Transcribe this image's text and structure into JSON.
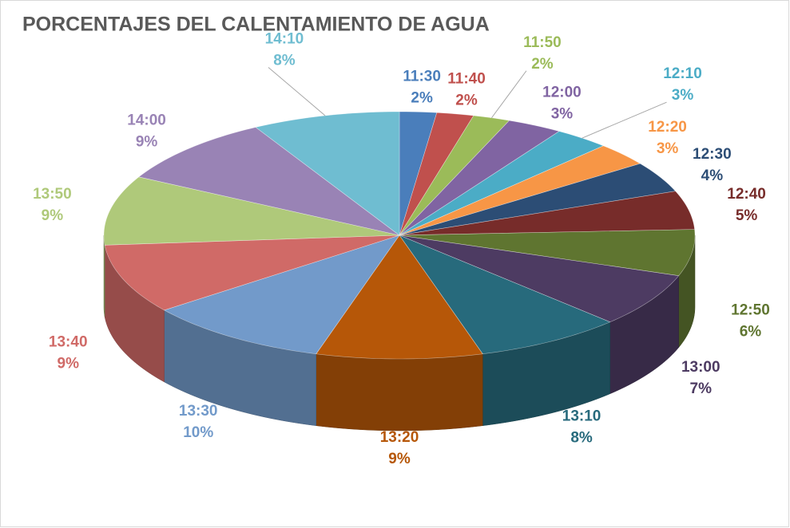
{
  "chart_data": {
    "type": "pie",
    "title": "PORCENTAJES DEL CALENTAMIENTO DE AGUA",
    "categories": [
      "11:30",
      "11:40",
      "11:50",
      "12:00",
      "12:10",
      "12:20",
      "12:30",
      "12:40",
      "12:50",
      "13:00",
      "13:10",
      "13:20",
      "13:30",
      "13:40",
      "13:50",
      "14:00",
      "14:10"
    ],
    "values": [
      2,
      2,
      2,
      3,
      3,
      3,
      4,
      5,
      6,
      7,
      8,
      9,
      10,
      9,
      9,
      9,
      8
    ],
    "value_labels": [
      "2%",
      "2%",
      "2%",
      "3%",
      "3%",
      "3%",
      "4%",
      "5%",
      "6%",
      "7%",
      "8%",
      "9%",
      "10%",
      "9%",
      "9%",
      "9%",
      "8%"
    ],
    "colors": [
      "#4a7ebb",
      "#c0504d",
      "#9bbb59",
      "#8064a2",
      "#4bacc6",
      "#f79646",
      "#2c4d75",
      "#772c2a",
      "#5f7530",
      "#4d3b62",
      "#276a7c",
      "#b65708",
      "#729aca",
      "#d06a67",
      "#afc97a",
      "#9983b5",
      "#6fbdd1"
    ]
  }
}
